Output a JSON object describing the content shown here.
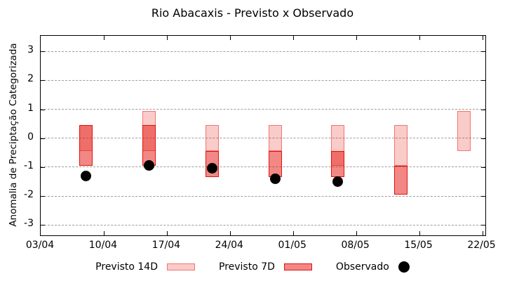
{
  "title": "Rio Abacaxis - Previsto x Observado",
  "chart_data": {
    "type": "bar",
    "subtype": "range-bars-with-observed-dots",
    "title": "Rio Abacaxis - Previsto x Observado",
    "xlabel": "",
    "ylabel": "Anomalia de Preciptação Categorizada",
    "grid": true,
    "legend_position": "bottom",
    "x_tick_labels": [
      "03/04",
      "10/04",
      "17/04",
      "24/04",
      "01/05",
      "08/05",
      "15/05",
      "22/05"
    ],
    "x_tick_days": [
      0,
      7,
      14,
      21,
      28,
      35,
      42,
      49
    ],
    "x_domain_days": [
      0,
      49.35
    ],
    "y_ticks": [
      3,
      2,
      1,
      0,
      -1,
      -2,
      -3
    ],
    "ylim": [
      -3.36,
      3.54
    ],
    "categories": [
      "08/04",
      "15/04",
      "22/04",
      "29/04",
      "06/05",
      "13/05",
      "20/05"
    ],
    "category_days": [
      5,
      12,
      19,
      26,
      33,
      40,
      47
    ],
    "series": [
      {
        "name": "Previsto 14D",
        "type": "range-bar",
        "color_fill": "rgba(227,18,11,0.22)",
        "color_border": "rgba(227,18,11,0.45)",
        "points": [
          {
            "date": "08/04",
            "day": 5,
            "lo": -0.45,
            "hi": 0.45
          },
          {
            "date": "15/04",
            "day": 12,
            "lo": -0.45,
            "hi": 0.95
          },
          {
            "date": "22/04",
            "day": 19,
            "lo": -0.45,
            "hi": 0.45
          },
          {
            "date": "29/04",
            "day": 26,
            "lo": -0.45,
            "hi": 0.45
          },
          {
            "date": "06/05",
            "day": 33,
            "lo": -0.95,
            "hi": 0.45
          },
          {
            "date": "13/05",
            "day": 40,
            "lo": -0.95,
            "hi": 0.45
          },
          {
            "date": "20/05",
            "day": 47,
            "lo": -0.45,
            "hi": 0.95
          }
        ]
      },
      {
        "name": "Previsto 7D",
        "type": "range-bar",
        "color_fill": "rgba(227,18,11,0.5)",
        "color_border": "#e3120b",
        "points": [
          {
            "date": "08/04",
            "day": 5,
            "lo": -0.95,
            "hi": 0.45
          },
          {
            "date": "15/04",
            "day": 12,
            "lo": -0.95,
            "hi": 0.45
          },
          {
            "date": "22/04",
            "day": 19,
            "lo": -1.35,
            "hi": -0.45
          },
          {
            "date": "29/04",
            "day": 26,
            "lo": -1.35,
            "hi": -0.45
          },
          {
            "date": "06/05",
            "day": 33,
            "lo": -1.35,
            "hi": -0.45
          },
          {
            "date": "13/05",
            "day": 40,
            "lo": -1.95,
            "hi": -0.95
          }
        ]
      },
      {
        "name": "Observado",
        "type": "dot",
        "color": "#000000",
        "points": [
          {
            "date": "08/04",
            "day": 5,
            "value": -1.3
          },
          {
            "date": "15/04",
            "day": 12,
            "value": -0.95
          },
          {
            "date": "22/04",
            "day": 19,
            "value": -1.05
          },
          {
            "date": "29/04",
            "day": 26,
            "value": -1.4
          },
          {
            "date": "06/05",
            "day": 33,
            "value": -1.5
          }
        ]
      }
    ],
    "axis_color": "#000000",
    "grid_color": "#9e9e9e",
    "background_color": "#ffffff"
  }
}
